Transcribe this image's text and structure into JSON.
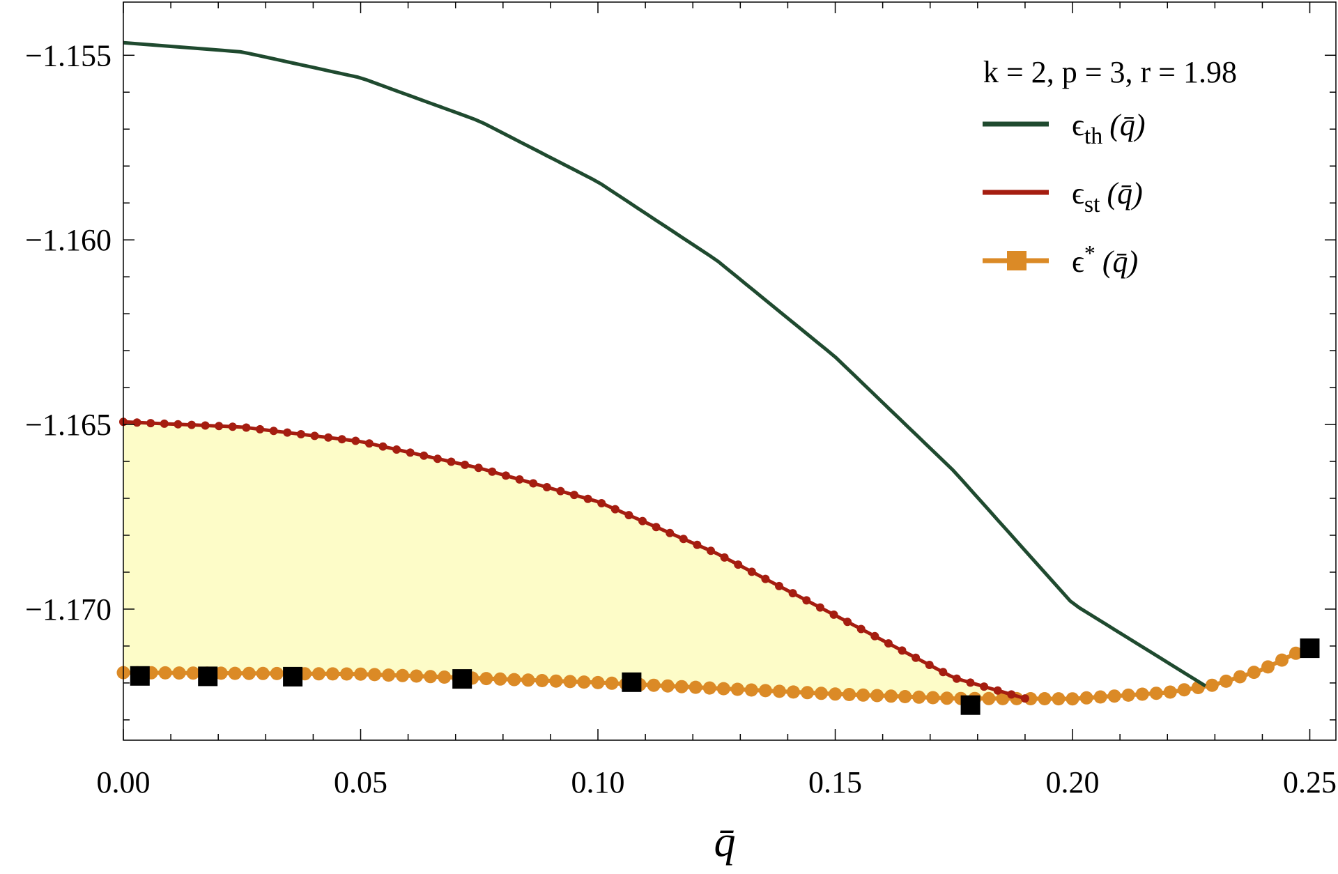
{
  "chart_data": {
    "type": "line",
    "title": "",
    "xlabel": "q̄",
    "ylabel": "",
    "xlim": [
      0.0,
      0.2555
    ],
    "ylim": [
      -1.17355,
      -1.15356
    ],
    "x_ticks": [
      0.0,
      0.05,
      0.1,
      0.15,
      0.2,
      0.25
    ],
    "x_tick_labels": [
      "0.00",
      "0.05",
      "0.10",
      "0.15",
      "0.20",
      "0.25"
    ],
    "y_ticks": [
      -1.155,
      -1.16,
      -1.165,
      -1.17
    ],
    "y_tick_labels": [
      "−1.155",
      "−1.160",
      "−1.165",
      "−1.170"
    ],
    "grid": false,
    "legend_position": "top-right",
    "legend_header": "k = 2, p = 3, r = 1.98",
    "colors": {
      "th": "#1f4a2f",
      "st": "#a51d10",
      "star": "#db8a26",
      "markers": "#000000",
      "fill": "#fdfcc8"
    },
    "series": [
      {
        "key": "th",
        "name": "ϵ",
        "sub": "th",
        "arg": "(q̄)",
        "style": "line",
        "x": [
          0.0,
          0.025,
          0.05,
          0.075,
          0.1,
          0.125,
          0.15,
          0.175,
          0.2,
          0.228
        ],
        "y": [
          -1.15466,
          -1.15491,
          -1.15561,
          -1.15678,
          -1.15843,
          -1.16055,
          -1.16317,
          -1.16626,
          -1.16985,
          -1.17208
        ]
      },
      {
        "key": "st",
        "name": "ϵ",
        "sub": "st",
        "arg": "(q̄)",
        "style": "line-dots",
        "x": [
          0.0,
          0.025,
          0.05,
          0.075,
          0.1,
          0.125,
          0.15,
          0.175,
          0.19
        ],
        "y": [
          -1.16493,
          -1.16507,
          -1.16546,
          -1.16618,
          -1.16709,
          -1.16849,
          -1.17017,
          -1.17186,
          -1.17242
        ]
      },
      {
        "key": "star",
        "name": "ϵ",
        "sup": "*",
        "arg": "(q̄)",
        "style": "dots",
        "x": [
          0.0,
          0.05,
          0.1,
          0.15,
          0.175,
          0.2,
          0.22,
          0.23,
          0.24,
          0.25
        ],
        "y": [
          -1.17172,
          -1.17176,
          -1.17199,
          -1.1723,
          -1.17242,
          -1.17243,
          -1.17226,
          -1.17205,
          -1.17164,
          -1.17101
        ]
      },
      {
        "key": "markers",
        "style": "squares",
        "x": [
          0.0035,
          0.0178,
          0.0357,
          0.0714,
          0.1071,
          0.1785,
          0.25
        ],
        "y": [
          -1.17181,
          -1.17182,
          -1.17183,
          -1.17189,
          -1.17198,
          -1.1726,
          -1.17106
        ]
      }
    ]
  }
}
